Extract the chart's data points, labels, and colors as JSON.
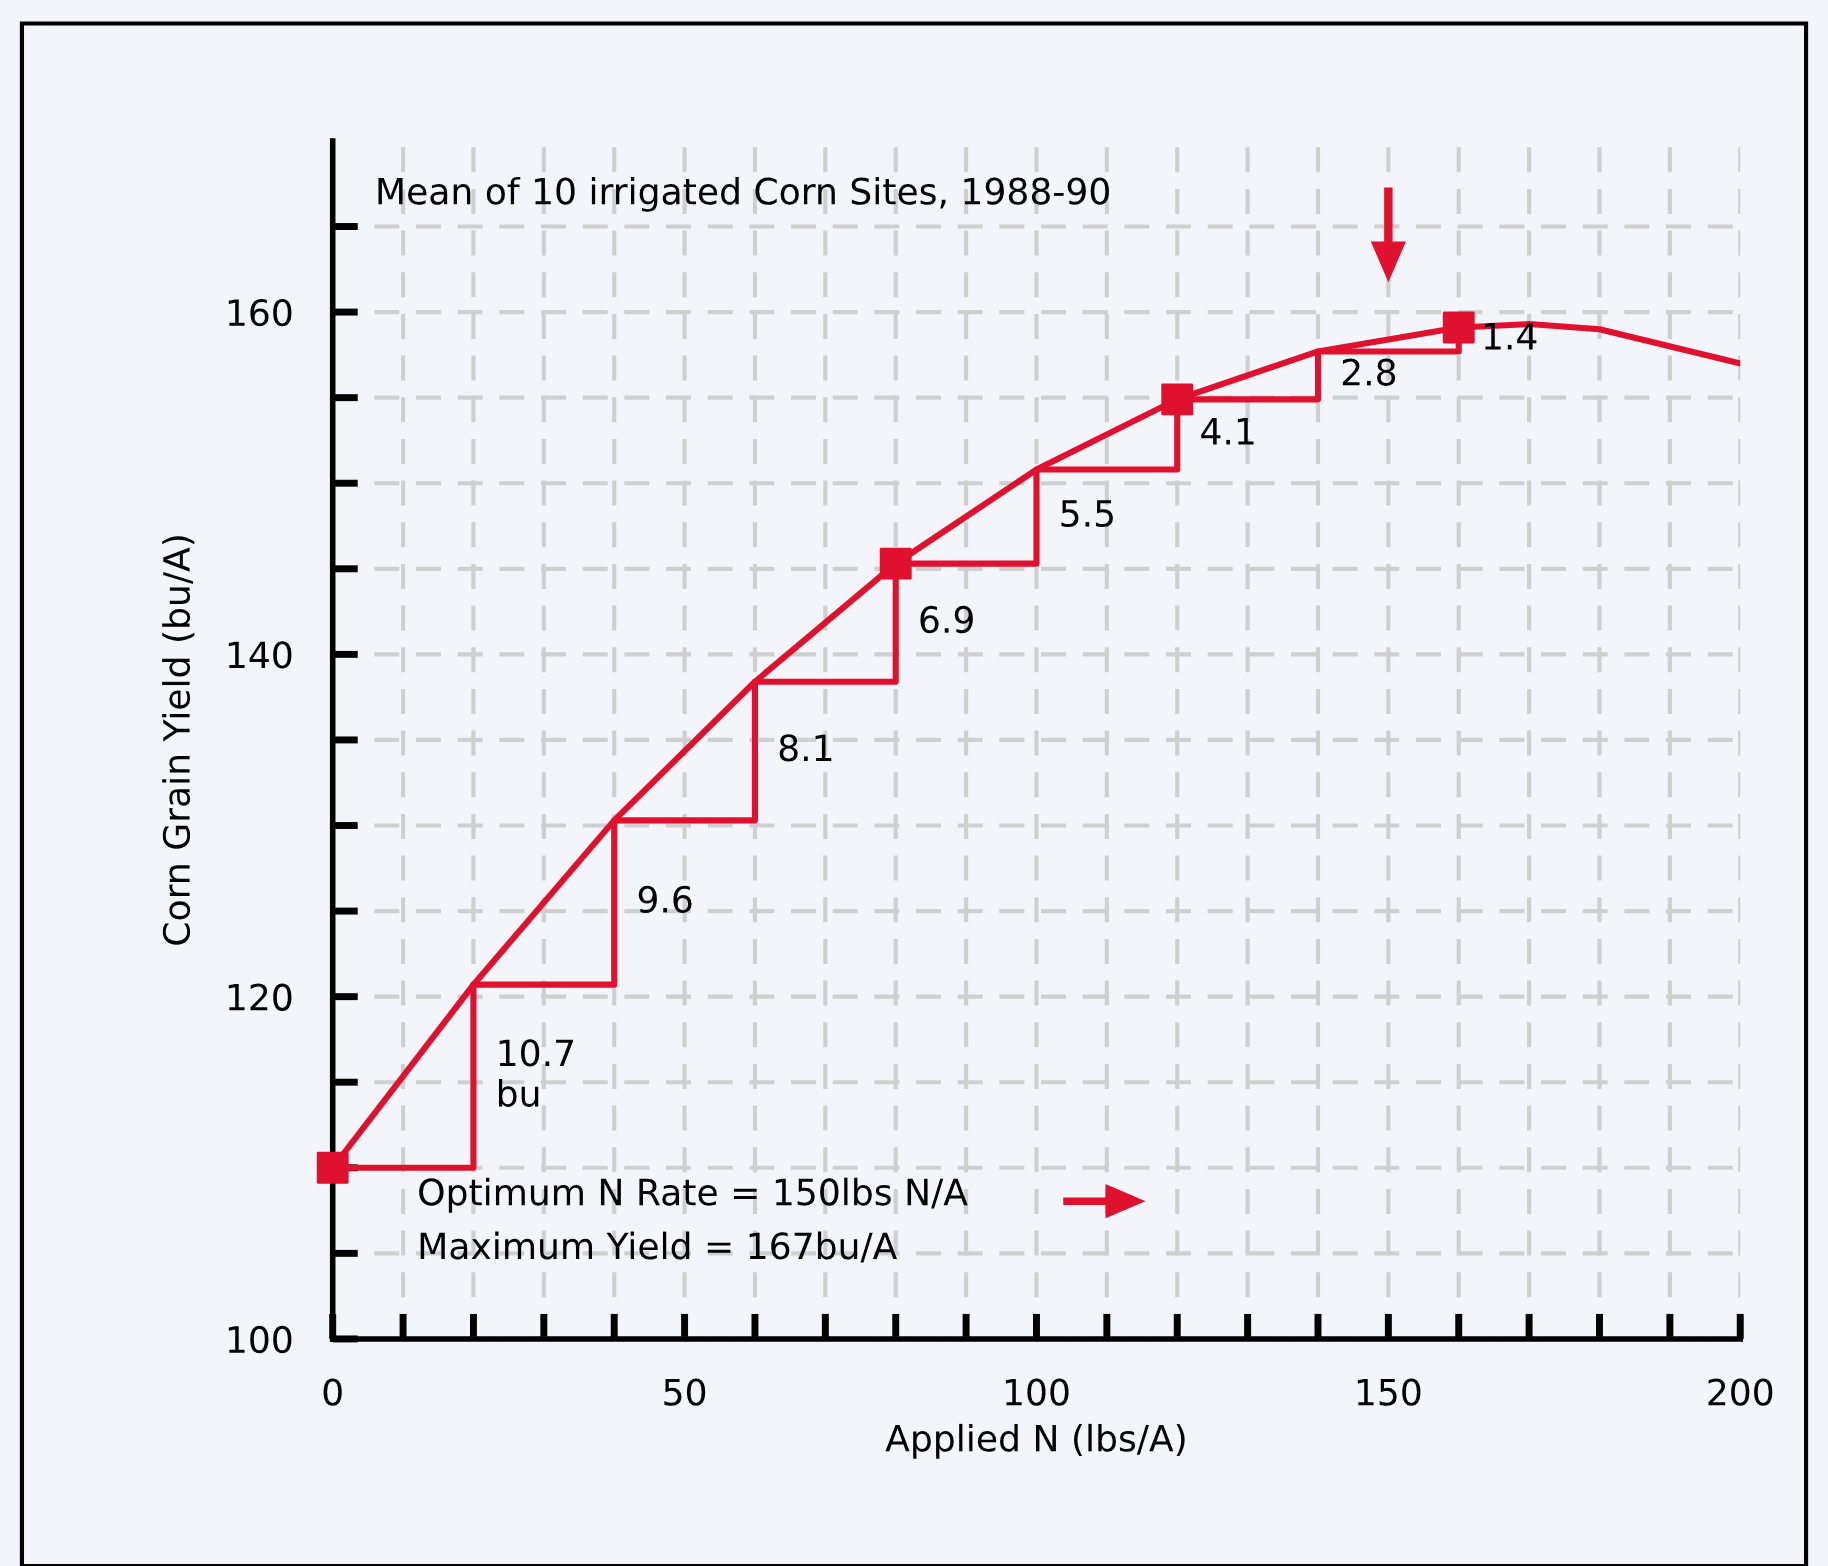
{
  "chart_data": {
    "type": "line",
    "xlabel": "Applied N (lbs/A)",
    "ylabel": "Corn Grain Yield (bu/A)",
    "xlim": [
      0,
      200
    ],
    "ylim": [
      100,
      170
    ],
    "xticks": [
      0,
      {
        "value": 10,
        "label": null
      },
      {
        "value": 20,
        "label": null
      },
      {
        "value": 30,
        "label": null
      },
      {
        "value": 40,
        "label": null
      },
      50,
      {
        "value": 60,
        "label": null
      },
      {
        "value": 70,
        "label": null
      },
      {
        "value": 80,
        "label": null
      },
      {
        "value": 90,
        "label": null
      },
      100,
      {
        "value": 110,
        "label": null
      },
      {
        "value": 120,
        "label": null
      },
      {
        "value": 130,
        "label": null
      },
      {
        "value": 140,
        "label": null
      },
      150,
      {
        "value": 160,
        "label": null
      },
      {
        "value": 170,
        "label": null
      },
      {
        "value": 180,
        "label": null
      },
      {
        "value": 190,
        "label": null
      },
      200
    ],
    "yticks": [
      100,
      {
        "value": 105,
        "label": null
      },
      {
        "value": 110,
        "label": null
      },
      {
        "value": 115,
        "label": null
      },
      120,
      {
        "value": 125,
        "label": null
      },
      {
        "value": 130,
        "label": null
      },
      {
        "value": 135,
        "label": null
      },
      140,
      {
        "value": 145,
        "label": null
      },
      {
        "value": 150,
        "label": null
      },
      {
        "value": 155,
        "label": null
      },
      160,
      {
        "value": 165,
        "label": null
      }
    ],
    "grid": true,
    "series": [
      {
        "color": "#e0102f",
        "x": [
          0,
          20,
          40,
          60,
          80,
          100,
          120,
          140,
          160,
          170,
          180,
          200
        ],
        "values": [
          110,
          120.7,
          130.3,
          138.4,
          145.3,
          150.8,
          154.9,
          157.7,
          159.1,
          159.3,
          159.0,
          157.0
        ]
      },
      {
        "type": "step",
        "color": "#e0102f",
        "x": [
          0,
          20,
          40,
          60,
          80,
          100,
          120,
          140,
          160
        ],
        "values": [
          110,
          120.7,
          130.3,
          138.4,
          145.3,
          150.8,
          154.9,
          157.7,
          159.1
        ]
      },
      {
        "type": "scatter",
        "color": "#e0102f",
        "marker": "square",
        "x": [
          0,
          80,
          120,
          160
        ],
        "values": [
          110,
          145.3,
          154.9,
          159.1
        ]
      }
    ],
    "annotations": [
      "Mean of 10 irrigated Corn Sites, 1988-90",
      {
        "text": "10.7\nbu",
        "x": 20,
        "y": 115.35
      },
      {
        "text": "9.6",
        "x": 40,
        "y": 125.5
      },
      {
        "text": "8.1",
        "x": 60,
        "y": 134.35
      },
      {
        "text": "6.9",
        "x": 80,
        "y": 141.85
      },
      {
        "text": "5.5",
        "x": 100,
        "y": 148.05
      },
      {
        "text": "4.1",
        "x": 120,
        "y": 152.85
      },
      {
        "text": "2.8",
        "x": 140,
        "y": 156.3
      },
      {
        "text": "1.4",
        "x": 160,
        "y": 158.4
      },
      "Optimum N Rate = 150lbs N/A",
      "Maximum Yield = 167bu/A"
    ]
  }
}
